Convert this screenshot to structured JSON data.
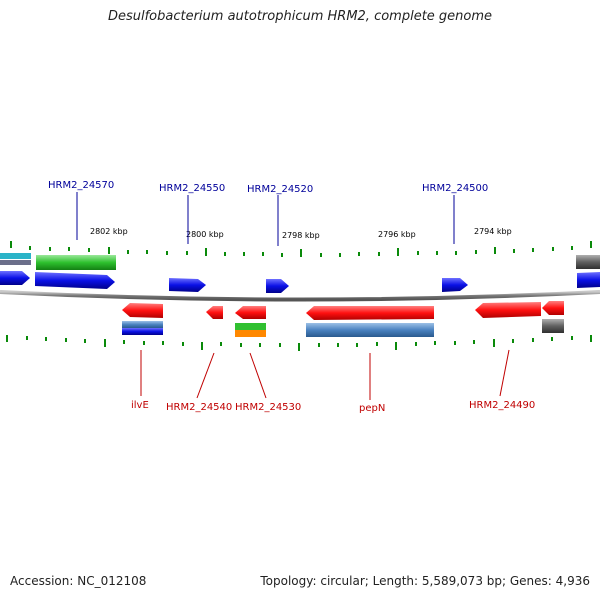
{
  "header": {
    "title": "Desulfobacterium autotrophicum HRM2, complete genome"
  },
  "footer": {
    "accession": "Accession: NC_012108",
    "summary": "Topology: circular; Length: 5,589,073 bp; Genes: 4,936"
  },
  "scale_labels": [
    "2802 kbp",
    "2800 kbp",
    "2798 kbp",
    "2796 kbp",
    "2794 kbp"
  ],
  "forward_labels": [
    "HRM2_24570",
    "HRM2_24550",
    "HRM2_24520",
    "HRM2_24500"
  ],
  "reverse_labels": [
    "ilvE",
    "HRM2_24540",
    "HRM2_24530",
    "pepN",
    "HRM2_24490"
  ],
  "colors": {
    "forward_cds": "#0a10e6",
    "reverse_cds": "#ff1010",
    "forward_feature": "#2ec12e",
    "forward_misc": "#2ab3c8",
    "reverse_feature_blue": "#4a82c0",
    "reverse_feature_green": "#30c030",
    "reverse_feature_orange": "#ff8800",
    "grey_feature": "#555555",
    "backbone": "#888888",
    "forward_label": "#00009a",
    "reverse_label": "#c00000",
    "tick": "#0a8a0a"
  }
}
